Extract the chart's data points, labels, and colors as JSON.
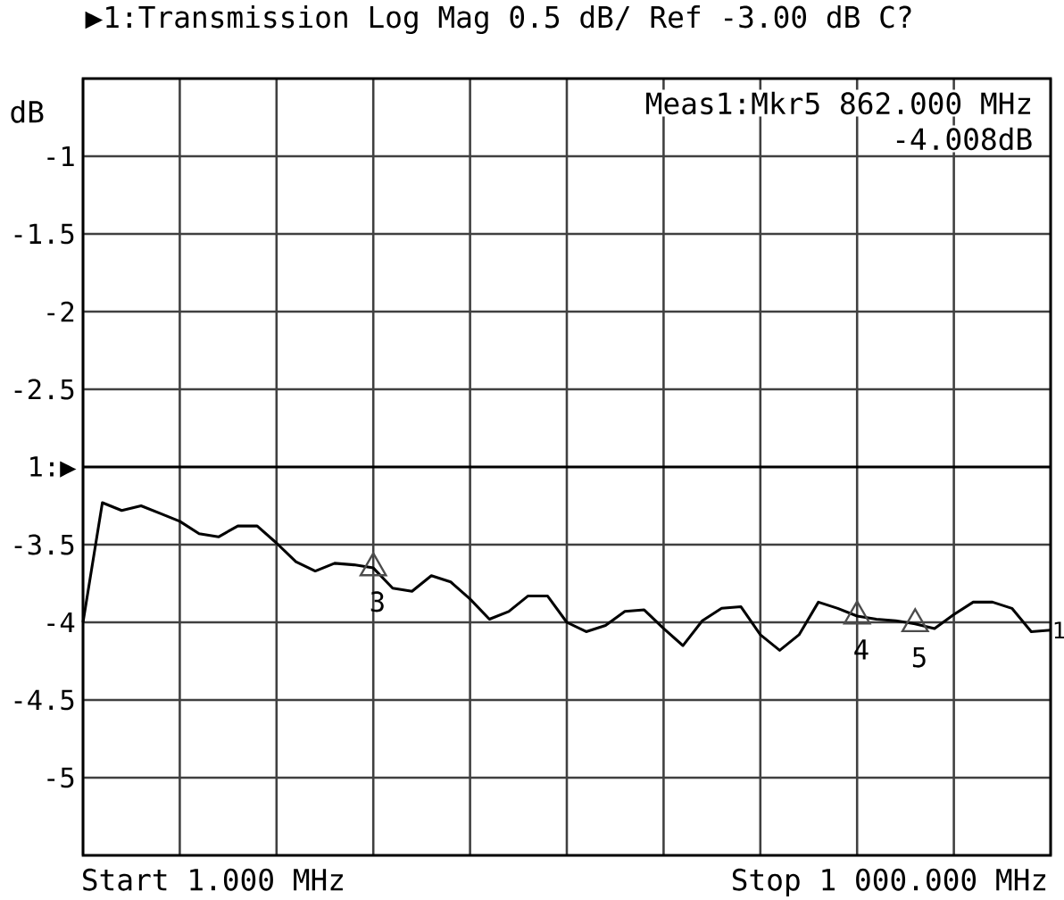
{
  "chart_data": {
    "type": "line",
    "title": "▶1:Transmission    Log Mag   0.5 dB/ Ref  -3.00 dB   C?",
    "ylabel": "dB",
    "annotations": [
      "Meas1:Mkr5  862.000 MHz",
      "-4.008dB",
      "Start 1.000 MHz",
      "Stop 1 000.000 MHz",
      "3",
      "4",
      "5",
      "1"
    ],
    "categories": [
      null,
      null,
      null,
      null,
      null,
      null,
      null,
      null,
      null,
      null,
      null,
      null,
      null,
      null,
      null,
      null,
      null,
      null,
      null,
      null,
      null,
      null,
      null,
      null,
      null,
      null,
      null,
      null,
      null,
      null,
      null,
      null,
      null,
      null,
      null,
      null,
      null,
      null,
      null,
      null,
      null,
      null,
      null,
      null,
      null,
      null,
      null,
      null,
      null,
      null,
      null
    ],
    "ylim": [
      -5.5,
      -0.5
    ],
    "yticks": [
      -1,
      -1.5,
      -2,
      -2.5,
      -3.5,
      -4,
      -4.5,
      -5
    ],
    "ref_lines": [
      {
        "axis": "y",
        "value": -3,
        "label": "1:▶"
      }
    ],
    "tick_labels": "y",
    "grid": true,
    "series": [
      {
        "color": "#000000",
        "values": [
          -4.0,
          -3.23,
          -3.28,
          -3.25,
          -3.3,
          -3.35,
          -3.43,
          -3.45,
          -3.38,
          -3.38,
          -3.49,
          -3.61,
          -3.67,
          -3.62,
          -3.63,
          -3.65,
          -3.78,
          -3.8,
          -3.7,
          -3.74,
          -3.85,
          -3.98,
          -3.93,
          -3.83,
          -3.83,
          -4.0,
          -4.06,
          -4.02,
          -3.93,
          -3.92,
          -4.04,
          -4.15,
          -3.99,
          -3.91,
          -3.9,
          -4.08,
          -4.18,
          -4.08,
          -3.87,
          -3.91,
          -3.96,
          -3.98,
          -3.99,
          -4.01,
          -4.04,
          -3.95,
          -3.87,
          -3.87,
          -3.91,
          -4.06,
          -4.05
        ]
      },
      {
        "color": "#4c4c4c",
        "type": "scatter",
        "marker": "triangle",
        "values": [
          null,
          null,
          null,
          null,
          null,
          null,
          null,
          null,
          null,
          null,
          null,
          null,
          null,
          null,
          null,
          -3.65,
          null,
          null,
          null,
          null,
          null,
          null,
          null,
          null,
          null,
          null,
          null,
          null,
          null,
          null,
          null,
          null,
          null,
          null,
          null,
          null,
          null,
          null,
          null,
          null,
          -3.96,
          null,
          null,
          -4.01,
          null,
          null,
          null,
          null,
          null,
          null,
          null
        ]
      }
    ]
  }
}
